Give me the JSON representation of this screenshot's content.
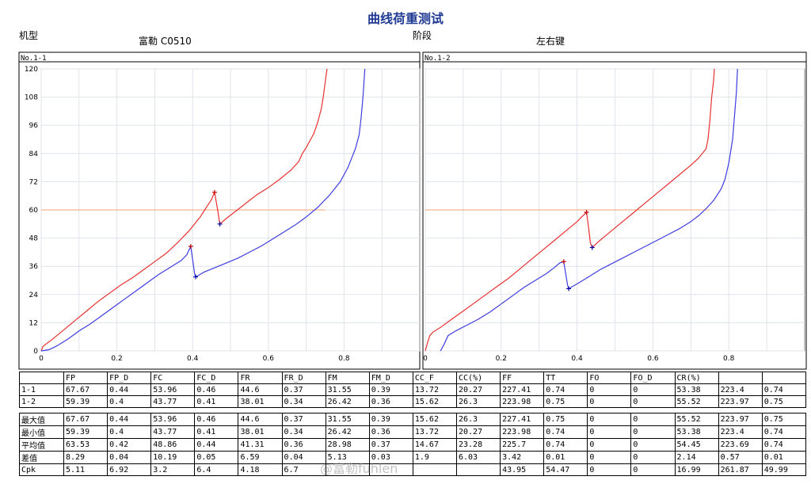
{
  "page": {
    "title": "曲线荷重测试",
    "model_label": "机型",
    "model_value": "富勒 C0510",
    "stage_label": "阶段",
    "stage_value": "左右键"
  },
  "chart_data": [
    {
      "type": "line",
      "panel_label": "No.1-1",
      "xlim": [
        0,
        1.0
      ],
      "ylim": [
        0,
        120
      ],
      "x_ticks": [
        "0",
        "0.2",
        "0.4",
        "0.6",
        "0.8"
      ],
      "y_ticks": [
        "0",
        "12",
        "24",
        "36",
        "48",
        "60",
        "72",
        "84",
        "96",
        "108",
        "120"
      ],
      "grid": true,
      "reference_line": {
        "y": 60,
        "x_end": 0.75,
        "color": "#f5a070"
      },
      "series": [
        {
          "color": "#e83030",
          "points": [
            [
              0,
              0
            ],
            [
              0.005,
              2
            ],
            [
              0.03,
              5
            ],
            [
              0.06,
              9
            ],
            [
              0.09,
              13
            ],
            [
              0.12,
              17
            ],
            [
              0.15,
              21
            ],
            [
              0.18,
              24.5
            ],
            [
              0.21,
              28
            ],
            [
              0.24,
              31
            ],
            [
              0.27,
              34.5
            ],
            [
              0.3,
              38
            ],
            [
              0.33,
              41.5
            ],
            [
              0.36,
              46
            ],
            [
              0.39,
              51
            ],
            [
              0.42,
              57
            ],
            [
              0.44,
              62
            ],
            [
              0.45,
              64.5
            ],
            [
              0.458,
              67.5
            ],
            [
              0.465,
              61
            ],
            [
              0.47,
              56
            ],
            [
              0.472,
              54
            ],
            [
              0.49,
              56.5
            ],
            [
              0.51,
              59
            ],
            [
              0.53,
              61.5
            ],
            [
              0.55,
              64
            ],
            [
              0.57,
              66.5
            ],
            [
              0.6,
              69.5
            ],
            [
              0.63,
              73
            ],
            [
              0.66,
              77
            ],
            [
              0.68,
              80.5
            ],
            [
              0.69,
              84
            ],
            [
              0.7,
              86.5
            ],
            [
              0.71,
              89.5
            ],
            [
              0.72,
              92.5
            ],
            [
              0.73,
              97
            ],
            [
              0.74,
              103
            ],
            [
              0.745,
              108
            ],
            [
              0.75,
              114
            ],
            [
              0.755,
              120
            ]
          ]
        },
        {
          "color": "#3d3de0",
          "points": [
            [
              0,
              0
            ],
            [
              0.02,
              0.5
            ],
            [
              0.04,
              2
            ],
            [
              0.07,
              5
            ],
            [
              0.1,
              8.5
            ],
            [
              0.13,
              11.5
            ],
            [
              0.16,
              15
            ],
            [
              0.19,
              18.5
            ],
            [
              0.22,
              22
            ],
            [
              0.25,
              25.5
            ],
            [
              0.28,
              29
            ],
            [
              0.31,
              32.5
            ],
            [
              0.34,
              35.5
            ],
            [
              0.37,
              38.5
            ],
            [
              0.385,
              41
            ],
            [
              0.395,
              44.5
            ],
            [
              0.4,
              39
            ],
            [
              0.405,
              33
            ],
            [
              0.408,
              31.5
            ],
            [
              0.43,
              33.5
            ],
            [
              0.46,
              35.5
            ],
            [
              0.49,
              37.5
            ],
            [
              0.52,
              39.5
            ],
            [
              0.55,
              42
            ],
            [
              0.58,
              44.5
            ],
            [
              0.61,
              47.5
            ],
            [
              0.64,
              50.5
            ],
            [
              0.67,
              53.5
            ],
            [
              0.7,
              57
            ],
            [
              0.73,
              61
            ],
            [
              0.76,
              66
            ],
            [
              0.79,
              72
            ],
            [
              0.81,
              78
            ],
            [
              0.82,
              82
            ],
            [
              0.83,
              86
            ],
            [
              0.84,
              92
            ],
            [
              0.845,
              99
            ],
            [
              0.85,
              108
            ],
            [
              0.853,
              115
            ],
            [
              0.855,
              120
            ]
          ]
        }
      ],
      "markers": [
        {
          "x": 0.458,
          "y": 67.5,
          "color": "#c00000"
        },
        {
          "x": 0.472,
          "y": 54,
          "color": "#0000a0"
        },
        {
          "x": 0.395,
          "y": 44.5,
          "color": "#c00000"
        },
        {
          "x": 0.408,
          "y": 31.5,
          "color": "#0000a0"
        }
      ]
    },
    {
      "type": "line",
      "panel_label": "No.1-2",
      "xlim": [
        0,
        1.0
      ],
      "ylim": [
        0,
        120
      ],
      "x_ticks": [
        "0",
        "0.2",
        "0.4",
        "0.6",
        "0.8"
      ],
      "y_ticks": [],
      "grid": true,
      "reference_line": {
        "y": 60,
        "x_end": 0.75,
        "color": "#f5a070"
      },
      "series": [
        {
          "color": "#e83030",
          "points": [
            [
              0,
              0
            ],
            [
              0.005,
              3
            ],
            [
              0.012,
              6.5
            ],
            [
              0.02,
              8
            ],
            [
              0.04,
              10
            ],
            [
              0.07,
              13.5
            ],
            [
              0.1,
              17
            ],
            [
              0.13,
              20.5
            ],
            [
              0.16,
              24
            ],
            [
              0.19,
              27.5
            ],
            [
              0.22,
              31
            ],
            [
              0.25,
              35
            ],
            [
              0.28,
              39
            ],
            [
              0.31,
              43
            ],
            [
              0.34,
              47
            ],
            [
              0.37,
              51
            ],
            [
              0.4,
              55
            ],
            [
              0.415,
              57.5
            ],
            [
              0.425,
              59
            ],
            [
              0.43,
              53
            ],
            [
              0.435,
              46
            ],
            [
              0.44,
              44
            ],
            [
              0.46,
              47
            ],
            [
              0.49,
              51
            ],
            [
              0.52,
              55
            ],
            [
              0.55,
              59
            ],
            [
              0.58,
              63
            ],
            [
              0.61,
              67
            ],
            [
              0.64,
              71
            ],
            [
              0.67,
              75
            ],
            [
              0.7,
              79
            ],
            [
              0.72,
              82
            ],
            [
              0.73,
              84
            ],
            [
              0.74,
              86
            ],
            [
              0.745,
              90
            ],
            [
              0.75,
              98
            ],
            [
              0.755,
              108
            ],
            [
              0.76,
              115
            ],
            [
              0.762,
              120
            ]
          ]
        },
        {
          "color": "#3d3de0",
          "points": [
            [
              0.04,
              0
            ],
            [
              0.05,
              3
            ],
            [
              0.06,
              6.5
            ],
            [
              0.08,
              8.5
            ],
            [
              0.11,
              11
            ],
            [
              0.14,
              13.5
            ],
            [
              0.17,
              16.5
            ],
            [
              0.2,
              20
            ],
            [
              0.23,
              23.5
            ],
            [
              0.26,
              27
            ],
            [
              0.29,
              30
            ],
            [
              0.32,
              33
            ],
            [
              0.34,
              35.5
            ],
            [
              0.355,
              37.5
            ],
            [
              0.365,
              38
            ],
            [
              0.37,
              33
            ],
            [
              0.375,
              28
            ],
            [
              0.378,
              26.5
            ],
            [
              0.4,
              28.5
            ],
            [
              0.43,
              31.5
            ],
            [
              0.46,
              34.5
            ],
            [
              0.49,
              37
            ],
            [
              0.52,
              39.5
            ],
            [
              0.55,
              42
            ],
            [
              0.58,
              44.5
            ],
            [
              0.61,
              47
            ],
            [
              0.64,
              49.5
            ],
            [
              0.67,
              52
            ],
            [
              0.7,
              55
            ],
            [
              0.72,
              57.5
            ],
            [
              0.74,
              60.5
            ],
            [
              0.76,
              64
            ],
            [
              0.78,
              69
            ],
            [
              0.79,
              73
            ],
            [
              0.8,
              80
            ],
            [
              0.81,
              90
            ],
            [
              0.815,
              100
            ],
            [
              0.82,
              110
            ],
            [
              0.823,
              120
            ]
          ]
        }
      ],
      "markers": [
        {
          "x": 0.425,
          "y": 59,
          "color": "#c00000"
        },
        {
          "x": 0.44,
          "y": 44,
          "color": "#0000a0"
        },
        {
          "x": 0.365,
          "y": 38,
          "color": "#c00000"
        },
        {
          "x": 0.378,
          "y": 26.5,
          "color": "#0000a0"
        }
      ]
    }
  ],
  "results_table": {
    "headers": [
      "",
      "FP",
      "FP_D",
      "FC",
      "FC_D",
      "FR",
      "FR_D",
      "FM",
      "FM_D",
      "CC_F",
      "CC(%)",
      "FF",
      "TT",
      "FO",
      "FO_D",
      "CR(%)",
      "",
      ""
    ],
    "rows": [
      [
        "1-1",
        "67.67",
        "0.44",
        "53.96",
        "0.46",
        "44.6",
        "0.37",
        "31.55",
        "0.39",
        "13.72",
        "20.27",
        "227.41",
        "0.74",
        "0",
        "0",
        "53.38",
        "223.4",
        "0.74"
      ],
      [
        "1-2",
        "59.39",
        "0.4",
        "43.77",
        "0.41",
        "38.01",
        "0.34",
        "26.42",
        "0.36",
        "15.62",
        "26.3",
        "223.98",
        "0.75",
        "0",
        "0",
        "55.52",
        "223.97",
        "0.75"
      ]
    ]
  },
  "stats_table": {
    "rows": [
      [
        "最大值",
        "67.67",
        "0.44",
        "53.96",
        "0.46",
        "44.6",
        "0.37",
        "31.55",
        "0.39",
        "15.62",
        "26.3",
        "227.41",
        "0.75",
        "0",
        "0",
        "55.52",
        "223.97",
        "0.75"
      ],
      [
        "最小值",
        "59.39",
        "0.4",
        "43.77",
        "0.41",
        "38.01",
        "0.34",
        "26.42",
        "0.36",
        "13.72",
        "20.27",
        "223.98",
        "0.74",
        "0",
        "0",
        "53.38",
        "223.4",
        "0.74"
      ],
      [
        "平均值",
        "63.53",
        "0.42",
        "48.86",
        "0.44",
        "41.31",
        "0.36",
        "28.98",
        "0.37",
        "14.67",
        "23.28",
        "225.7",
        "0.74",
        "0",
        "0",
        "54.45",
        "223.69",
        "0.74"
      ],
      [
        "差值",
        "8.29",
        "0.04",
        "10.19",
        "0.05",
        "6.59",
        "0.04",
        "5.13",
        "0.03",
        "1.9",
        "6.03",
        "3.42",
        "0.01",
        "0",
        "0",
        "2.14",
        "0.57",
        "0.01"
      ],
      [
        "Cpk",
        "5.11",
        "6.92",
        "3.2",
        "6.4",
        "4.18",
        "6.7",
        "",
        "",
        "",
        "",
        "43.95",
        "54.47",
        "0",
        "0",
        "16.99",
        "261.87",
        "49.99"
      ]
    ]
  },
  "watermark": "@富勒fuhlen"
}
